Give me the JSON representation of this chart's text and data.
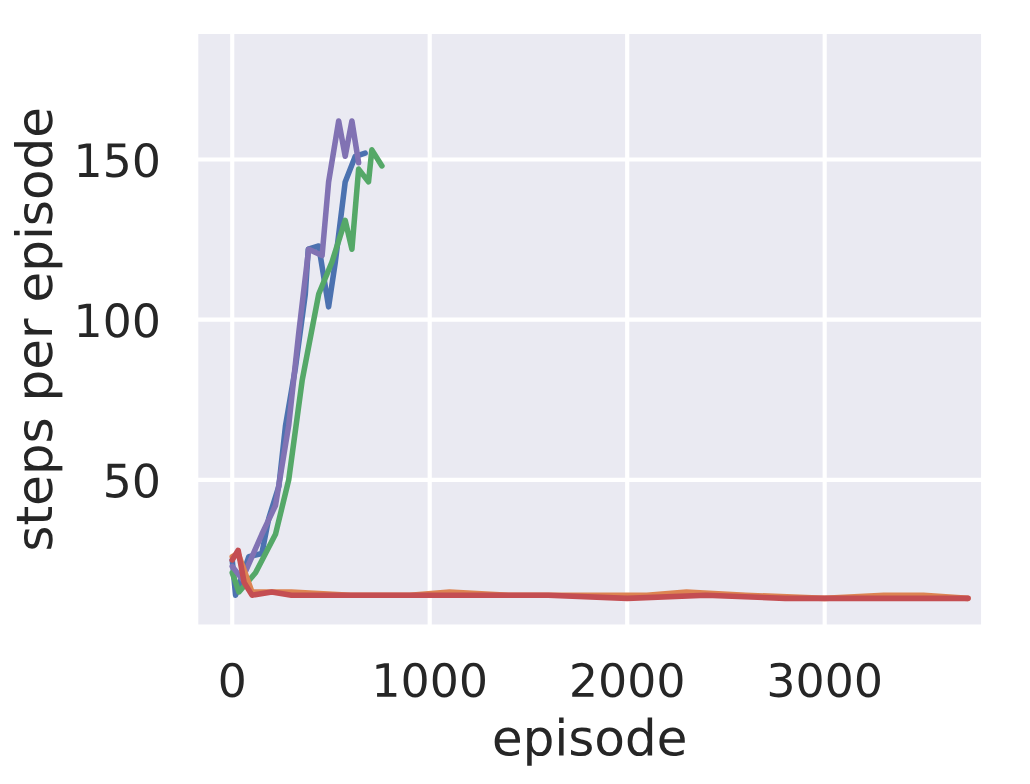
{
  "chart_data": {
    "type": "line",
    "xlabel": "episode",
    "ylabel": "steps per episode",
    "xlim": [
      -185,
      3805
    ],
    "ylim": [
      4,
      190
    ],
    "xticks": [
      0,
      1000,
      2000,
      3000
    ],
    "yticks": [
      50,
      100,
      150
    ],
    "grid": true,
    "legend": false,
    "marker": "none",
    "line_style": "solid",
    "series": [
      {
        "color": "#4c72b0",
        "x": [
          0,
          17,
          84,
          150,
          185,
          236,
          270,
          320,
          370,
          385,
          438,
          488,
          522,
          572,
          623,
          673
        ],
        "values": [
          25,
          14,
          26,
          27,
          38,
          48,
          67,
          85,
          108,
          122,
          123,
          104,
          118,
          143,
          151,
          152
        ]
      },
      {
        "color": "#55a868",
        "x": [
          0,
          34,
          118,
          219,
          286,
          354,
          438,
          505,
          572,
          606,
          640,
          690,
          707,
          758
        ],
        "values": [
          21,
          15,
          21,
          33,
          50,
          81,
          108,
          118,
          131,
          122,
          147,
          143,
          153,
          148
        ]
      },
      {
        "color": "#8172b3",
        "x": [
          0,
          50,
          150,
          219,
          286,
          337,
          387,
          455,
          488,
          539,
          572,
          606,
          640
        ],
        "values": [
          23,
          19,
          33,
          42,
          67,
          96,
          122,
          120,
          143,
          162,
          151,
          162,
          149
        ]
      },
      {
        "color": "#dd8452",
        "x": [
          0,
          30,
          100,
          300,
          600,
          900,
          1100,
          1400,
          1800,
          2100,
          2300,
          2600,
          3000,
          3300,
          3500,
          3726
        ],
        "values": [
          26,
          27,
          15,
          15,
          14,
          14,
          15,
          14,
          14,
          14,
          15,
          14,
          13,
          14,
          14,
          13
        ]
      },
      {
        "color": "#c44e52",
        "x": [
          0,
          30,
          60,
          100,
          200,
          300,
          500,
          700,
          1000,
          1300,
          1600,
          2000,
          2400,
          2800,
          3200,
          3500,
          3726
        ],
        "values": [
          25,
          28,
          18,
          14,
          15,
          14,
          14,
          14,
          14,
          14,
          14,
          13,
          14,
          13,
          13,
          13,
          13
        ]
      }
    ]
  }
}
